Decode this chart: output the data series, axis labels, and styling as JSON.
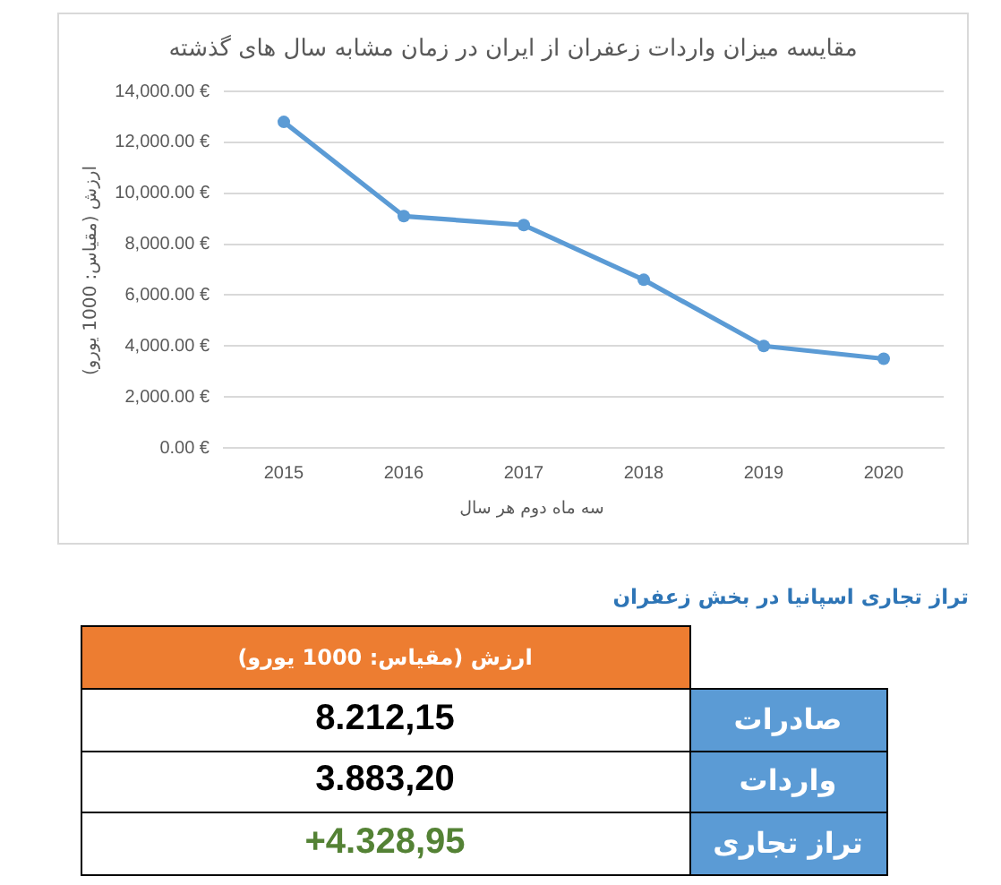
{
  "chart_data": [
    {
      "type": "line",
      "title": "مقایسه میزان واردات زعفران از ایران در زمان مشابه سال های گذشته",
      "xlabel": "سه ماه دوم هر سال",
      "ylabel": "ارزش (مقیاس: 1000 یورو)",
      "categories": [
        "2015",
        "2016",
        "2017",
        "2018",
        "2019",
        "2020"
      ],
      "values": [
        12800,
        9100,
        8750,
        6600,
        4000,
        3500
      ],
      "color": "#5b9bd5",
      "ylim": [
        0,
        14000
      ],
      "yticks": [
        {
          "value": 0,
          "label": "0.00 €"
        },
        {
          "value": 2000,
          "label": "2,000.00 €"
        },
        {
          "value": 4000,
          "label": "4,000.00 €"
        },
        {
          "value": 6000,
          "label": "6,000.00 €"
        },
        {
          "value": 8000,
          "label": "8,000.00 €"
        },
        {
          "value": 10000,
          "label": "10,000.00 €"
        },
        {
          "value": 12000,
          "label": "12,000.00 €"
        },
        {
          "value": 14000,
          "label": "14,000.00 €"
        }
      ],
      "grid": "y",
      "marker": "circle",
      "line_style": "solid"
    },
    {
      "type": "other",
      "title": "تراز تجاری اسپانیا در بخش زعفران",
      "ylabel": "ارزش (مقیاس: 1000 یورو)",
      "categories": [
        "صادرات",
        "واردات",
        "تراز تجاری"
      ],
      "values": [
        8212.15,
        3883.2,
        4328.95
      ],
      "value_labels": [
        "8.212,15",
        "3.883,20",
        "+4.328,95"
      ],
      "colors": [
        "#000000",
        "#000000",
        "#548235"
      ]
    }
  ]
}
